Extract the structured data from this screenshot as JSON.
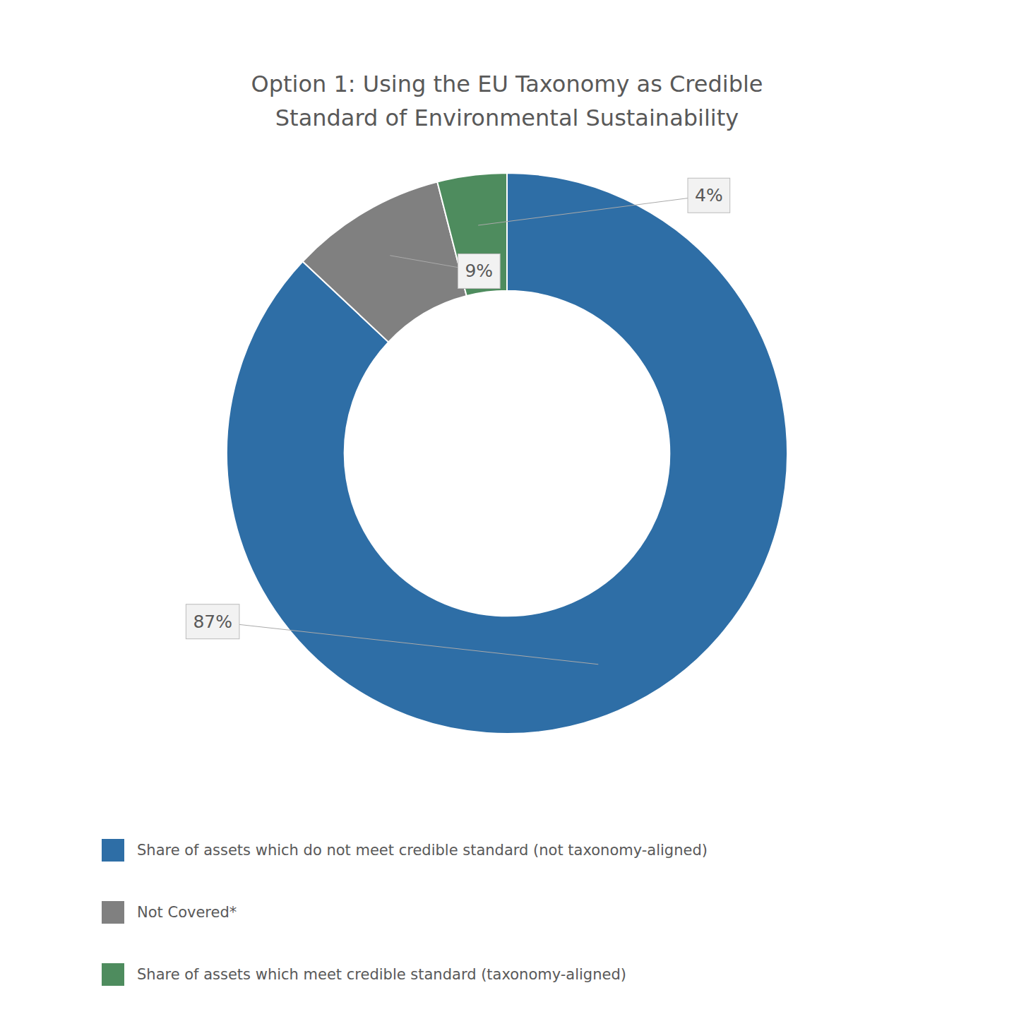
{
  "chart_data": {
    "type": "pie",
    "title": "Option 1: Using the EU Taxonomy as Credible\nStandard of Environmental Sustainability",
    "categories": [
      "Share of assets which do not meet credible standard (not taxonomy-aligned)",
      "Not Covered*",
      "Share of assets which meet credible standard (taxonomy-aligned)"
    ],
    "values": [
      87,
      9,
      4
    ],
    "value_labels": [
      "87%",
      "9%",
      "4%"
    ],
    "colors": [
      "#2E6EA6",
      "#808080",
      "#4E8C5E"
    ],
    "data_labels": true
  }
}
